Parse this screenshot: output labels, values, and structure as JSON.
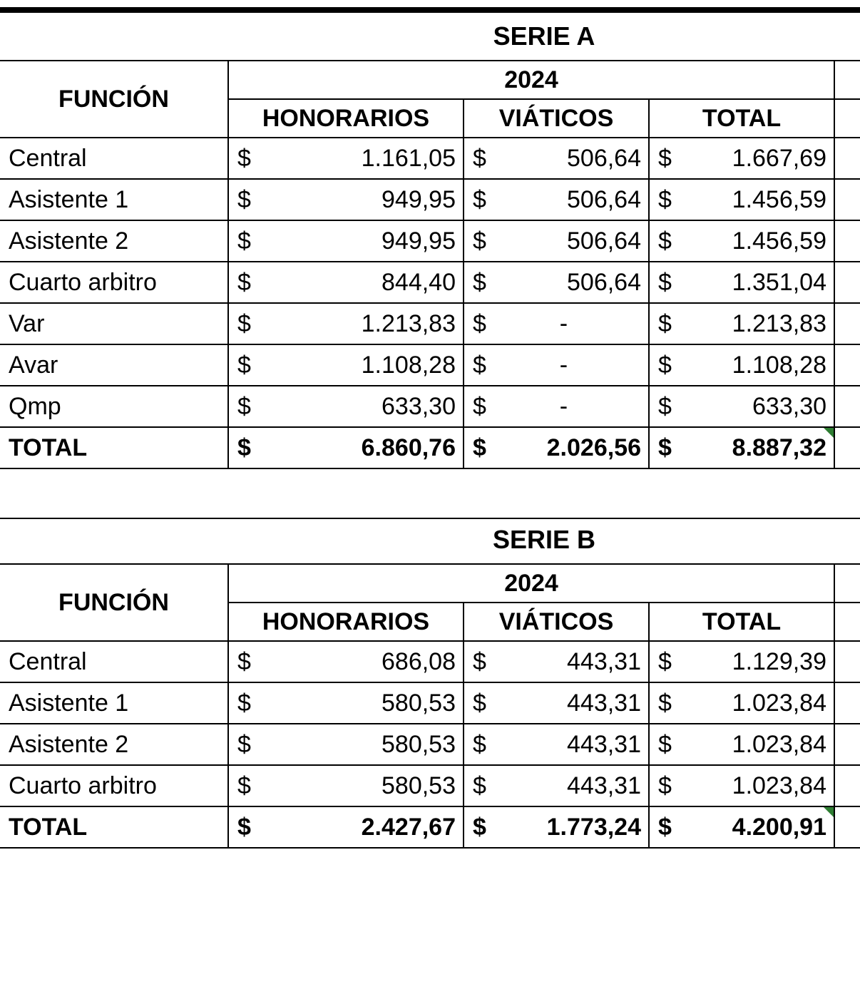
{
  "currency_symbol": "$",
  "colors": {
    "border": "#000000",
    "background": "#ffffff",
    "text": "#000000",
    "triangle": "#2e7d32"
  },
  "fonts": {
    "family": "Arial",
    "header_size_pt": 26,
    "body_size_pt": 25
  },
  "serieA": {
    "title": "SERIE A",
    "year": "2024",
    "headers": {
      "funcion": "FUNCIÓN",
      "honorarios": "HONORARIOS",
      "viaticos": "VIÁTICOS",
      "total": "TOTAL"
    },
    "rows": [
      {
        "funcion": "Central",
        "honorarios": "1.161,05",
        "viaticos": "506,64",
        "total": "1.667,69",
        "viaticos_dash": false
      },
      {
        "funcion": "Asistente 1",
        "honorarios": "949,95",
        "viaticos": "506,64",
        "total": "1.456,59",
        "viaticos_dash": false
      },
      {
        "funcion": "Asistente 2",
        "honorarios": "949,95",
        "viaticos": "506,64",
        "total": "1.456,59",
        "viaticos_dash": false
      },
      {
        "funcion": "Cuarto arbitro",
        "honorarios": "844,40",
        "viaticos": "506,64",
        "total": "1.351,04",
        "viaticos_dash": false
      },
      {
        "funcion": "Var",
        "honorarios": "1.213,83",
        "viaticos": "-",
        "total": "1.213,83",
        "viaticos_dash": true
      },
      {
        "funcion": "Avar",
        "honorarios": "1.108,28",
        "viaticos": "-",
        "total": "1.108,28",
        "viaticos_dash": true
      },
      {
        "funcion": "Qmp",
        "honorarios": "633,30",
        "viaticos": "-",
        "total": "633,30",
        "viaticos_dash": true
      }
    ],
    "total_row": {
      "label": "TOTAL",
      "honorarios": "6.860,76",
      "viaticos": "2.026,56",
      "total": "8.887,32"
    }
  },
  "serieB": {
    "title": "SERIE B",
    "year": "2024",
    "headers": {
      "funcion": "FUNCIÓN",
      "honorarios": "HONORARIOS",
      "viaticos": "VIÁTICOS",
      "total": "TOTAL"
    },
    "rows": [
      {
        "funcion": "Central",
        "honorarios": "686,08",
        "viaticos": "443,31",
        "total": "1.129,39",
        "viaticos_dash": false
      },
      {
        "funcion": "Asistente 1",
        "honorarios": "580,53",
        "viaticos": "443,31",
        "total": "1.023,84",
        "viaticos_dash": false
      },
      {
        "funcion": "Asistente 2",
        "honorarios": "580,53",
        "viaticos": "443,31",
        "total": "1.023,84",
        "viaticos_dash": false
      },
      {
        "funcion": "Cuarto arbitro",
        "honorarios": "580,53",
        "viaticos": "443,31",
        "total": "1.023,84",
        "viaticos_dash": false
      }
    ],
    "total_row": {
      "label": "TOTAL",
      "honorarios": "2.427,67",
      "viaticos": "1.773,24",
      "total": "4.200,91"
    }
  }
}
